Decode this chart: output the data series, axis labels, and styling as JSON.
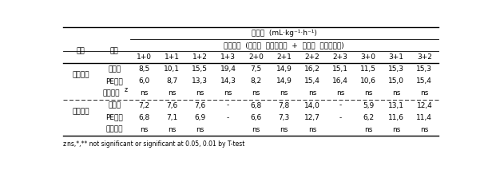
{
  "title_top": "호흡량  (mL·kg⁻¹·h⁻¹)",
  "subtitle": "저장기간  (탈삽전  저장개월수  +  탈삽후  저장개월수)",
  "col_headers": [
    "1+0",
    "1+1",
    "1+2",
    "1+3",
    "2+0",
    "2+1",
    "2+2",
    "2+3",
    "3+0",
    "3+1",
    "3+2"
  ],
  "pum_jong": "품종",
  "cheo_ri": "처리",
  "group1_name": "상주둥시",
  "group2_name": "도근조생",
  "moo_cheori": "무처리",
  "pe_film": "PE필름",
  "yui_level_z": "유의수준",
  "yui_level": "유의수준",
  "group1_rows": [
    [
      "8,5",
      "10,1",
      "15,5",
      "19,4",
      "7,5",
      "14,9",
      "16,2",
      "15,1",
      "11,5",
      "15,3",
      "15,3"
    ],
    [
      "6,0",
      "8,7",
      "13,3",
      "14,3",
      "8,2",
      "14,9",
      "15,4",
      "16,4",
      "10,6",
      "15,0",
      "15,4"
    ],
    [
      "ns",
      "ns",
      "ns",
      "ns",
      "ns",
      "ns",
      "ns",
      "ns",
      "ns",
      "ns",
      "ns"
    ]
  ],
  "group2_rows": [
    [
      "7,2",
      "7,6",
      "7,6",
      "-",
      "6,8",
      "7,8",
      "14,0",
      "-",
      "5,9",
      "13,1",
      "12,4"
    ],
    [
      "6,8",
      "7,1",
      "6,9",
      "-",
      "6,6",
      "7,3",
      "12,7",
      "-",
      "6,2",
      "11,6",
      "11,4"
    ],
    [
      "ns",
      "ns",
      "ns",
      "",
      "ns",
      "ns",
      "ns",
      "",
      "ns",
      "ns",
      "ns"
    ]
  ],
  "footnote": "zns,*,** not significant or significant at 0.05, 0.01 by T-test",
  "bg_color": "#ffffff",
  "text_color": "#000000"
}
